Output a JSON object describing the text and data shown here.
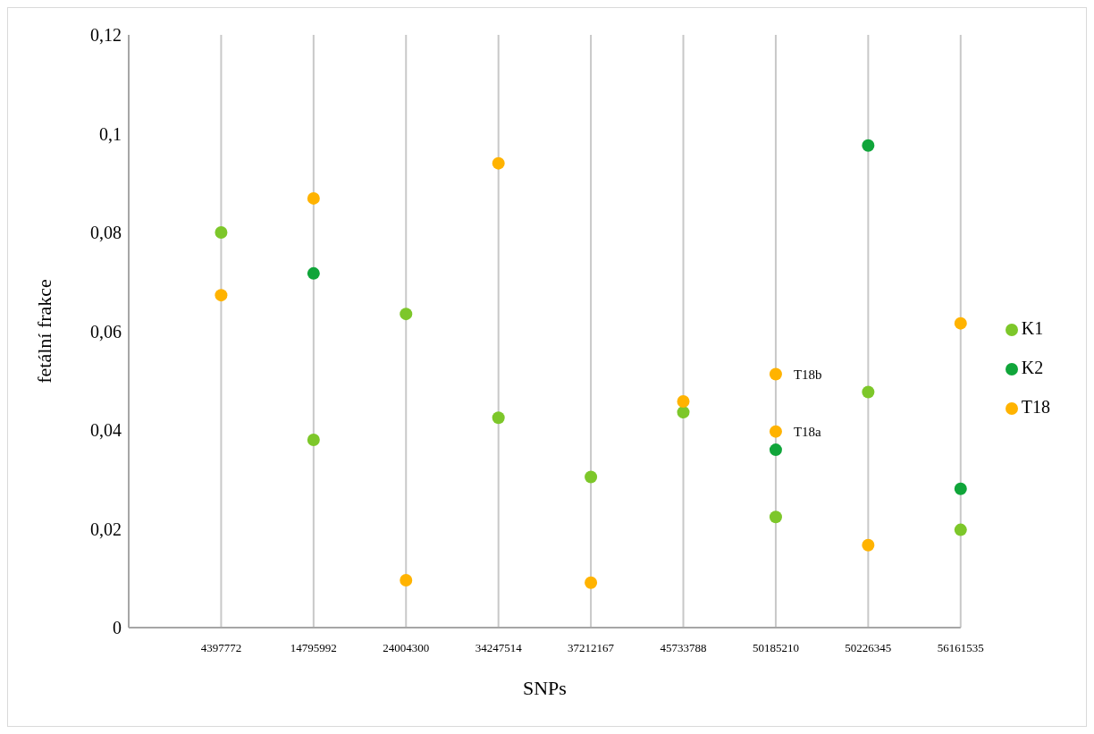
{
  "chart_data": {
    "type": "scatter",
    "xlabel": "SNPs",
    "ylabel": "fetální frakce",
    "categories": [
      "4397772",
      "14795992",
      "24004300",
      "34247514",
      "37212167",
      "45733788",
      "50185210",
      "50226345",
      "56161535"
    ],
    "series": [
      {
        "name": "K1",
        "color": "#7dc72a",
        "x": [
          "4397772",
          "14795992",
          "24004300",
          "34247514",
          "37212167",
          "45733788",
          "50185210",
          "50226345",
          "56161535"
        ],
        "values": [
          0.08,
          0.038,
          0.0635,
          0.0425,
          0.0305,
          0.0436,
          0.0224,
          0.0477,
          0.0198
        ]
      },
      {
        "name": "K2",
        "color": "#10a53a",
        "x": [
          "14795992",
          "50185210",
          "50226345",
          "56161535"
        ],
        "values": [
          0.0717,
          0.036,
          0.0976,
          0.0281
        ]
      },
      {
        "name": "T18",
        "color": "#ffb300",
        "x": [
          "4397772",
          "14795992",
          "24004300",
          "34247514",
          "37212167",
          "45733788",
          "50185210",
          "50185210",
          "50226345",
          "56161535"
        ],
        "values": [
          0.0673,
          0.0869,
          0.0096,
          0.094,
          0.0091,
          0.0458,
          0.0513,
          0.0397,
          0.0167,
          0.0616
        ]
      }
    ],
    "annotations": [
      {
        "text": "T18b",
        "x": "50185210",
        "y": 0.0513
      },
      {
        "text": "T18a",
        "x": "50185210",
        "y": 0.0397
      }
    ],
    "ylim": [
      0,
      0.12
    ],
    "yticks": [
      {
        "value": 0,
        "label": "0"
      },
      {
        "value": 0.02,
        "label": "0,02"
      },
      {
        "value": 0.04,
        "label": "0,04"
      },
      {
        "value": 0.06,
        "label": "0,06"
      },
      {
        "value": 0.08,
        "label": "0,08"
      },
      {
        "value": 0.1,
        "label": "0,1"
      },
      {
        "value": 0.12,
        "label": "0,12"
      }
    ],
    "grid": "x",
    "legend": "right",
    "marker": "circle"
  }
}
